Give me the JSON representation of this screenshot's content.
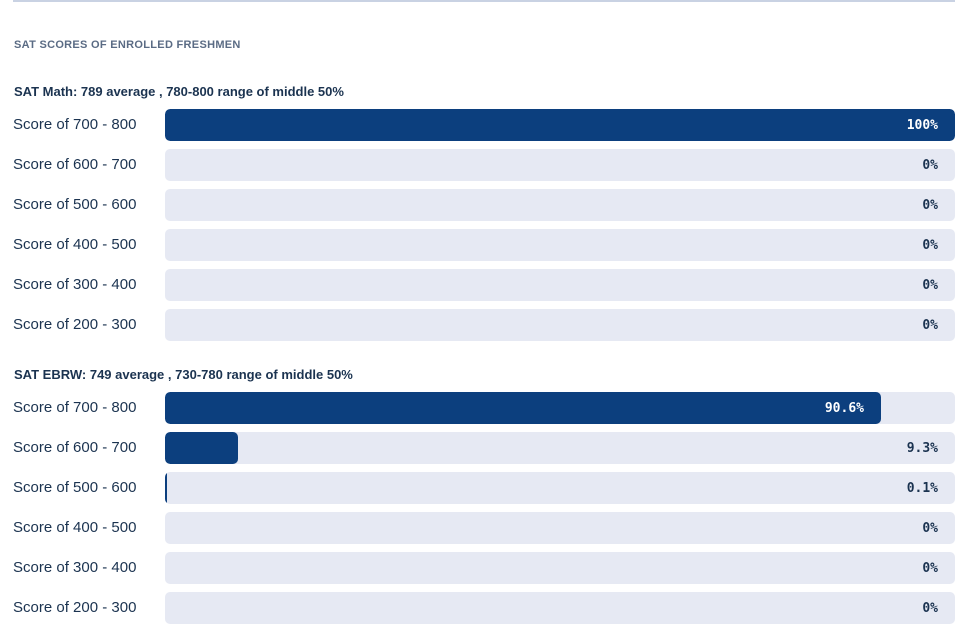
{
  "section_title": "SAT SCORES OF ENROLLED FRESHMEN",
  "colors": {
    "bar_fill": "#0c3f7e",
    "track": "#e6e9f3",
    "text": "#1b3350",
    "muted": "#5a6b84"
  },
  "chart_data": [
    {
      "type": "bar",
      "orientation": "horizontal",
      "title": "SAT Math: 789 average , 780-800 range of middle 50%",
      "xlim": [
        0,
        100
      ],
      "unit": "%",
      "categories": [
        "Score of 700 - 800",
        "Score of 600 - 700",
        "Score of 500 - 600",
        "Score of 400 - 500",
        "Score of 300 - 400",
        "Score of 200 - 300"
      ],
      "values": [
        100,
        0,
        0,
        0,
        0,
        0
      ],
      "labels": [
        "100%",
        "0%",
        "0%",
        "0%",
        "0%",
        "0%"
      ]
    },
    {
      "type": "bar",
      "orientation": "horizontal",
      "title": "SAT EBRW: 749 average , 730-780 range of middle 50%",
      "xlim": [
        0,
        100
      ],
      "unit": "%",
      "categories": [
        "Score of 700 - 800",
        "Score of 600 - 700",
        "Score of 500 - 600",
        "Score of 400 - 500",
        "Score of 300 - 400",
        "Score of 200 - 300"
      ],
      "values": [
        90.6,
        9.3,
        0.1,
        0,
        0,
        0
      ],
      "labels": [
        "90.6%",
        "9.3%",
        "0.1%",
        "0%",
        "0%",
        "0%"
      ]
    }
  ]
}
